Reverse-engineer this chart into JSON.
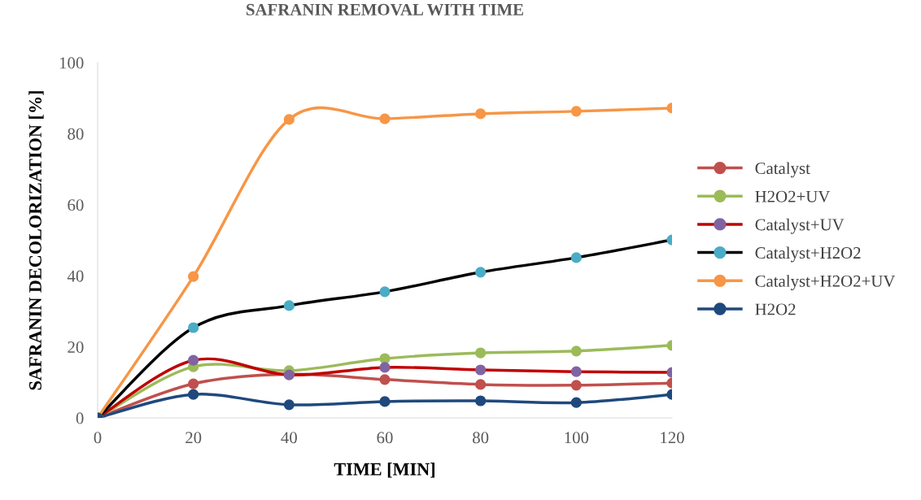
{
  "chart_data": {
    "type": "line",
    "title": "SAFRANIN REMOVAL WITH TIME",
    "xlabel": "TIME [MIN]",
    "ylabel": "SAFRANIN DECOLORIZATION [%]",
    "x": [
      0,
      20,
      40,
      60,
      80,
      100,
      120
    ],
    "series": [
      {
        "name": "Catalyst",
        "color": "#c0504d",
        "values": [
          0,
          9.6,
          12.3,
          10.8,
          9.4,
          9.2,
          9.8
        ]
      },
      {
        "name": "H2O2+UV",
        "color": "#9bbb59",
        "values": [
          0,
          14.4,
          13.3,
          16.7,
          18.3,
          18.8,
          20.4
        ]
      },
      {
        "name": "Catalyst+UV",
        "color": "#c00000",
        "colors": [
          "#8064a2",
          "#8064a2",
          "#8064a2",
          "#8064a2",
          "#8064a2",
          "#8064a2",
          "#8064a2"
        ],
        "values": [
          0,
          16.2,
          12.1,
          14.2,
          13.5,
          13.0,
          12.8
        ]
      },
      {
        "name": "Catalyst+H2O2",
        "color": "#000000",
        "colors": [
          "#4bacc6",
          "#4bacc6",
          "#4bacc6",
          "#4bacc6",
          "#4bacc6",
          "#4bacc6",
          "#4bacc6"
        ],
        "values": [
          0,
          25.4,
          31.6,
          35.5,
          41.0,
          45.1,
          50.1
        ]
      },
      {
        "name": "Catalyst+H2O2+UV",
        "color": "#f79646",
        "values": [
          0,
          39.8,
          84.0,
          84.2,
          85.6,
          86.3,
          87.2
        ]
      },
      {
        "name": "H2O2",
        "color": "#1f497d",
        "values": [
          0,
          6.6,
          3.7,
          4.6,
          4.8,
          4.3,
          6.6
        ]
      }
    ],
    "xlim": [
      0,
      120
    ],
    "xticks": [
      0,
      20,
      40,
      60,
      80,
      100,
      120
    ],
    "ylim": [
      0,
      100
    ],
    "yticks": [
      0,
      20,
      40,
      60,
      80,
      100
    ],
    "grid": false,
    "legend": "right",
    "marker": "circle",
    "line_style": "solid"
  }
}
